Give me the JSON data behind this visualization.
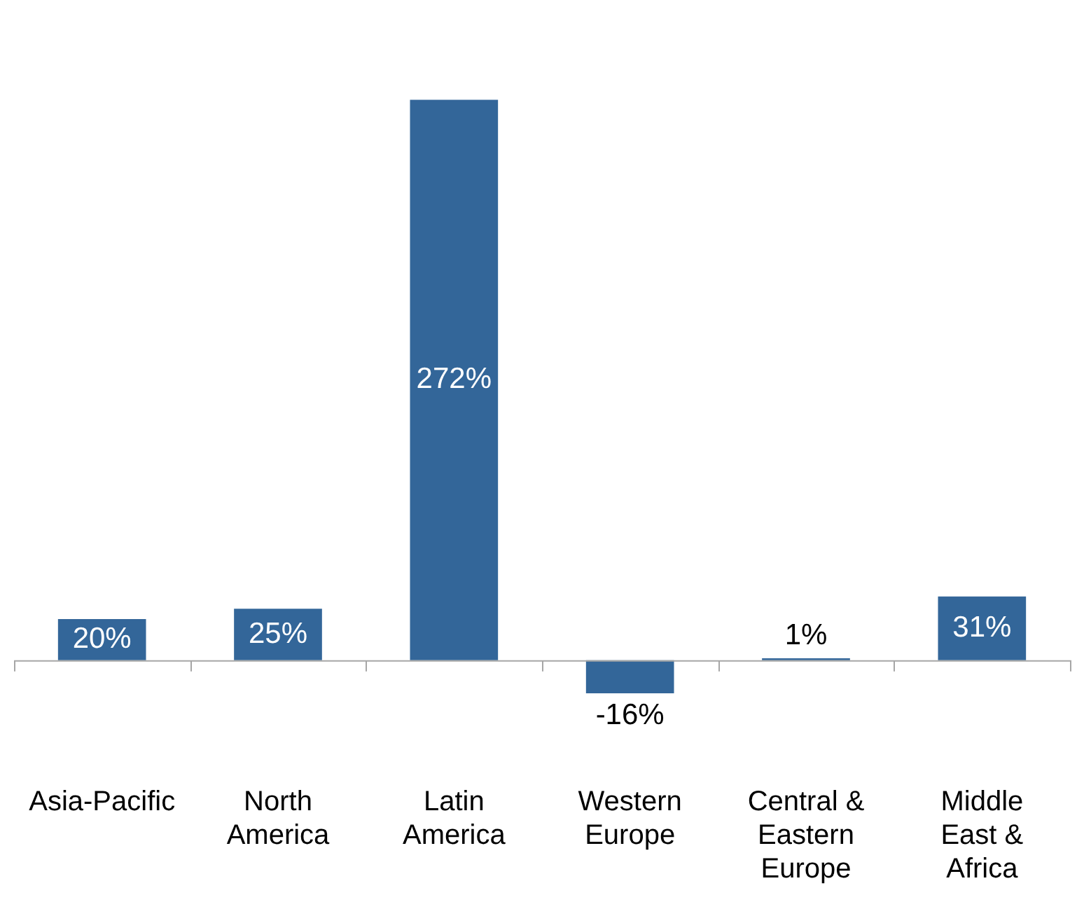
{
  "chart_data": {
    "type": "bar",
    "categories": [
      "Asia-Pacific",
      "North America",
      "Latin America",
      "Western Europe",
      "Central & Eastern Europe",
      "Middle East & Africa"
    ],
    "values": [
      20,
      25,
      272,
      -16,
      1,
      31
    ],
    "value_labels": [
      "20%",
      "25%",
      "272%",
      "-16%",
      "1%",
      "31%"
    ],
    "color": "#336699",
    "grid": false,
    "legend": false
  }
}
